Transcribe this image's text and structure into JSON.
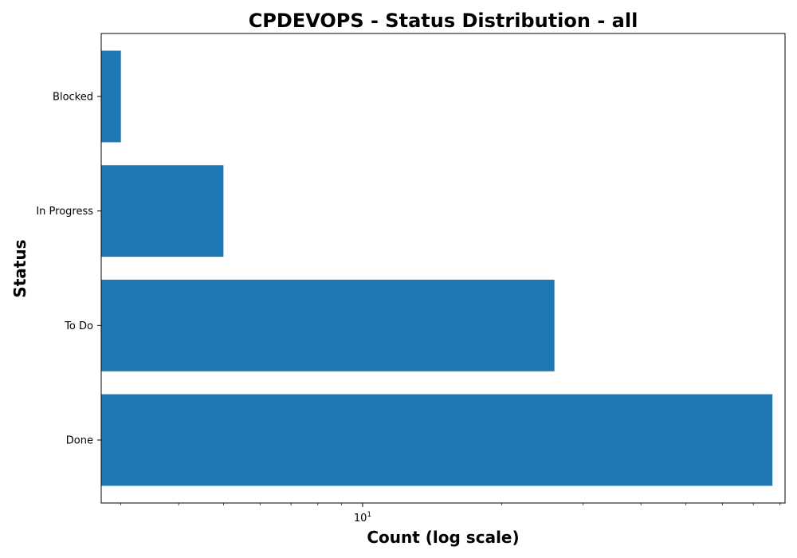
{
  "chart_data": {
    "type": "bar",
    "orientation": "horizontal",
    "title": "CPDEVOPS - Status Distribution - all",
    "xlabel": "Count (log scale)",
    "ylabel": "Status",
    "x_scale": "log",
    "xlim": [
      2.72,
      82
    ],
    "categories": [
      "Done",
      "To Do",
      "In Progress",
      "Blocked"
    ],
    "series": [
      {
        "values": [
          77,
          26,
          5,
          3
        ]
      }
    ],
    "x_tick_labels": [
      {
        "base": "10",
        "exponent": "1"
      }
    ],
    "bar_color": "#1f77b4",
    "grid": false,
    "legend": "none"
  }
}
